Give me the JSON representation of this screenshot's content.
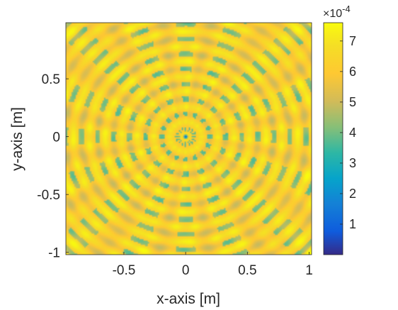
{
  "chart_data": {
    "type": "heatmap",
    "title": "",
    "xlabel": "x-axis [m]",
    "ylabel": "y-axis [m]",
    "xlim": [
      -1,
      1
    ],
    "ylim": [
      -1,
      1
    ],
    "xticks": [
      -0.5,
      0,
      0.5,
      1
    ],
    "xtick_labels": [
      "-0.5",
      "0",
      "0.5",
      "1"
    ],
    "yticks": [
      -1,
      -0.5,
      0,
      0.5
    ],
    "ytick_labels": [
      "-1",
      "-0.5",
      "0",
      "0.5"
    ],
    "colormap": "parula",
    "colorbar": {
      "clim": [
        0,
        7.6
      ],
      "ticks": [
        1,
        2,
        3,
        4,
        5,
        6,
        7
      ],
      "tick_labels": [
        "1",
        "2",
        "3",
        "4",
        "5",
        "6",
        "7"
      ],
      "multiplier": "×10",
      "exponent": "-4"
    },
    "grid": false,
    "pattern": {
      "description_values": {
        "center_value": 0.2,
        "background_value": 6.2,
        "ring_spacing_m": 0.13,
        "radial_spokes": 16
      }
    }
  }
}
